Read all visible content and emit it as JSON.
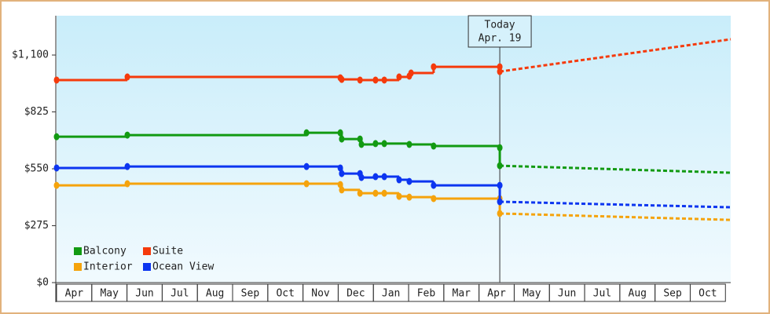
{
  "chart_data": {
    "type": "step-line",
    "months": [
      "Apr",
      "May",
      "Jun",
      "Jul",
      "Aug",
      "Sep",
      "Oct",
      "Nov",
      "Dec",
      "Jan",
      "Feb",
      "Mar",
      "Apr",
      "May",
      "Jun",
      "Jul",
      "Aug",
      "Sep",
      "Oct"
    ],
    "xlim": [
      0,
      19.15
    ],
    "ylim": [
      0,
      1290
    ],
    "yticks": [
      {
        "value": 0,
        "label": "$0"
      },
      {
        "value": 275,
        "label": "$275"
      },
      {
        "value": 550,
        "label": "$550"
      },
      {
        "value": 825,
        "label": "$825"
      },
      {
        "value": 1100,
        "label": "$1,100"
      }
    ],
    "today": {
      "label": "Today",
      "date": "Apr. 19",
      "x": 12.59
    },
    "legend": "bottom-left",
    "series": [
      {
        "name": "Balcony",
        "color": "#129a12",
        "x": [
          0,
          2.01,
          7.1,
          8.06,
          8.1,
          8.62,
          8.66,
          9.06,
          9.31,
          10.02,
          10.71,
          12.59
        ],
        "values": [
          705,
          713,
          724,
          724,
          694,
          694,
          668,
          672,
          672,
          668,
          660,
          652
        ],
        "forecast_x": [
          12.59,
          19.15
        ],
        "forecast_values": [
          565,
          531
        ]
      },
      {
        "name": "Suite",
        "color": "#f53a0c",
        "x": [
          0,
          2.01,
          8.06,
          8.1,
          8.62,
          9.06,
          9.31,
          9.73,
          10.02,
          10.07,
          10.71,
          12.59
        ],
        "values": [
          979,
          994,
          990,
          982,
          979,
          979,
          979,
          994,
          998,
          1013,
          1043,
          1043
        ],
        "forecast_x": [
          12.59,
          19.15
        ],
        "forecast_values": [
          1020,
          1176
        ]
      },
      {
        "name": "Interior",
        "color": "#f5a30c",
        "x": [
          0,
          2.01,
          7.1,
          8.06,
          8.1,
          8.62,
          9.06,
          9.31,
          9.73,
          10.02,
          10.71,
          12.59
        ],
        "values": [
          470,
          478,
          478,
          474,
          448,
          432,
          432,
          432,
          417,
          413,
          406,
          406
        ],
        "forecast_x": [
          12.59,
          19.15
        ],
        "forecast_values": [
          334,
          303
        ]
      },
      {
        "name": "Ocean View",
        "color": "#0c35f0",
        "x": [
          0,
          2.01,
          7.1,
          8.06,
          8.1,
          8.62,
          8.66,
          9.06,
          9.31,
          9.73,
          10.02,
          10.71,
          12.59
        ],
        "values": [
          554,
          561,
          561,
          554,
          527,
          527,
          508,
          512,
          512,
          497,
          489,
          470,
          470
        ],
        "forecast_x": [
          12.59,
          19.15
        ],
        "forecast_values": [
          391,
          364
        ]
      }
    ]
  }
}
